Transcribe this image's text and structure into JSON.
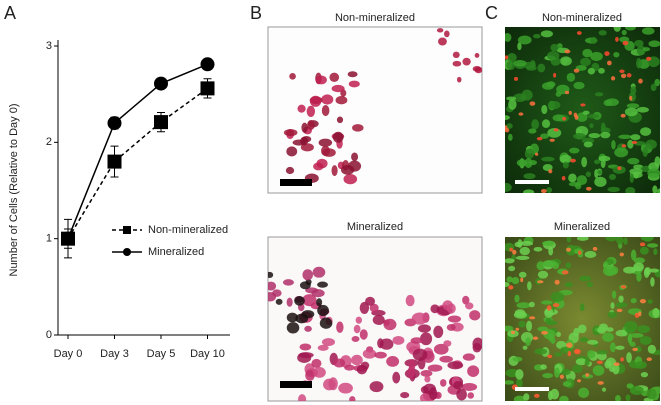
{
  "chart_data": {
    "type": "line",
    "y_label": "Number of Cells (Relative to Day 0)",
    "categories": [
      "Day 0",
      "Day 3",
      "Day 5",
      "Day 10"
    ],
    "series": [
      {
        "name": "Non-mineralized",
        "color": "#000000",
        "line_style": "dashed",
        "marker": "square",
        "values": [
          1.0,
          1.8,
          2.21,
          2.56
        ],
        "errors": [
          0.2,
          0.16,
          0.1,
          0.1
        ]
      },
      {
        "name": "Mineralized",
        "color": "#000000",
        "line_style": "solid",
        "marker": "circle",
        "values": [
          1.0,
          2.2,
          2.61,
          2.81
        ],
        "errors": [
          0.1,
          0.06,
          0.05,
          0.03
        ]
      }
    ],
    "ylim": [
      0,
      3
    ],
    "yticks": [
      0,
      1,
      2,
      3
    ],
    "grid": false,
    "legend": "right"
  },
  "figure": {
    "panel_labels": [
      "A",
      "B",
      "C"
    ],
    "image_titles": [
      "Non-mineralized",
      "Mineralized",
      "Non-mineralized",
      "Mineralized"
    ]
  }
}
